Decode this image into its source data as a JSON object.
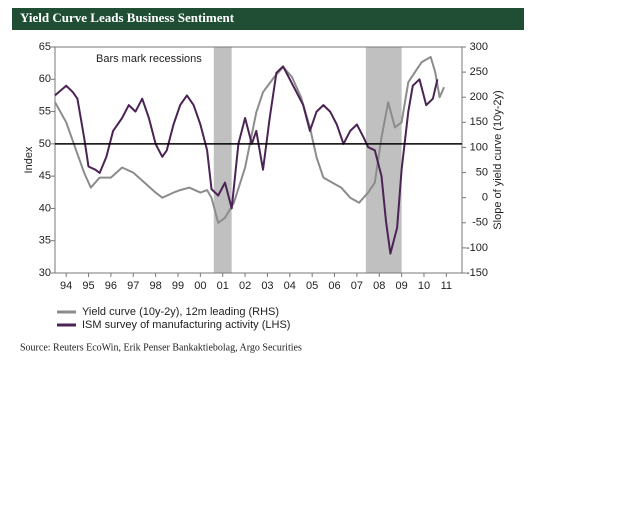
{
  "chart_data": {
    "type": "line",
    "title": "Yield Curve Leads Business Sentiment",
    "annotation": "Bars mark recessions",
    "ylabel": "Index",
    "y2label": "Slope of yield curve (10y-2y)",
    "source": "Source: Reuters EcoWin, Erik Penser Bankaktiebolag, Argo Securities",
    "xlim": [
      1994,
      2012.2
    ],
    "xticks": [
      {
        "value": 1994.5,
        "label": "94"
      },
      {
        "value": 1995.5,
        "label": "95"
      },
      {
        "value": 1996.5,
        "label": "96"
      },
      {
        "value": 1997.5,
        "label": "97"
      },
      {
        "value": 1998.5,
        "label": "98"
      },
      {
        "value": 1999.5,
        "label": "99"
      },
      {
        "value": 2000.5,
        "label": "00"
      },
      {
        "value": 2001.5,
        "label": "01"
      },
      {
        "value": 2002.5,
        "label": "02"
      },
      {
        "value": 2003.5,
        "label": "03"
      },
      {
        "value": 2004.5,
        "label": "04"
      },
      {
        "value": 2005.5,
        "label": "05"
      },
      {
        "value": 2006.5,
        "label": "06"
      },
      {
        "value": 2007.5,
        "label": "07"
      },
      {
        "value": 2008.5,
        "label": "08"
      },
      {
        "value": 2009.5,
        "label": "09"
      },
      {
        "value": 2010.5,
        "label": "10"
      },
      {
        "value": 2011.5,
        "label": "11"
      }
    ],
    "ylim": [
      30,
      65
    ],
    "yticks": [
      30,
      35,
      40,
      45,
      50,
      55,
      60,
      65
    ],
    "y2lim": [
      -150,
      300
    ],
    "y2ticks": [
      -150,
      -100,
      -50,
      0,
      50,
      100,
      150,
      200,
      250,
      300
    ],
    "reference_line": 50,
    "recessions": [
      [
        2001.1,
        2001.9
      ],
      [
        2007.9,
        2009.5
      ]
    ],
    "recession_color": "#c0c0c0",
    "series": [
      {
        "name": "Yield curve (10y-2y), 12m leading (RHS)",
        "color": "#8c8c8c",
        "axis": "y2",
        "x": [
          1994.0,
          1994.5,
          1994.9,
          1995.3,
          1995.6,
          1996.0,
          1996.5,
          1997.0,
          1997.5,
          1998.0,
          1998.5,
          1998.8,
          1999.3,
          1999.6,
          2000.0,
          2000.5,
          2000.8,
          2001.0,
          2001.3,
          2001.6,
          2002.0,
          2002.5,
          2003.0,
          2003.3,
          2003.8,
          2004.2,
          2004.6,
          2005.0,
          2005.4,
          2005.7,
          2006.0,
          2006.4,
          2006.8,
          2007.2,
          2007.6,
          2008.0,
          2008.3,
          2008.6,
          2008.9,
          2009.2,
          2009.5,
          2009.8,
          2010.1,
          2010.4,
          2010.8,
          2011.0,
          2011.2,
          2011.4
        ],
        "values": [
          190,
          150,
          100,
          50,
          20,
          40,
          40,
          60,
          50,
          30,
          10,
          0,
          10,
          15,
          20,
          10,
          15,
          0,
          -50,
          -40,
          -10,
          60,
          170,
          210,
          240,
          260,
          240,
          200,
          140,
          80,
          40,
          30,
          20,
          0,
          -10,
          10,
          30,
          120,
          190,
          140,
          150,
          230,
          250,
          270,
          280,
          250,
          200,
          220
        ]
      },
      {
        "name": "ISM survey of manufacturing activity (LHS)",
        "color": "#4b2354",
        "x": [
          1994.0,
          1994.5,
          1994.8,
          1995.0,
          1995.3,
          1995.5,
          1995.8,
          1996.0,
          1996.3,
          1996.6,
          1997.0,
          1997.3,
          1997.6,
          1997.9,
          1998.2,
          1998.5,
          1998.8,
          1999.0,
          1999.3,
          1999.6,
          1999.9,
          2000.2,
          2000.5,
          2000.8,
          2001.0,
          2001.3,
          2001.6,
          2001.9,
          2002.2,
          2002.5,
          2002.8,
          2003.0,
          2003.3,
          2003.6,
          2003.9,
          2004.2,
          2004.5,
          2004.8,
          2005.1,
          2005.4,
          2005.7,
          2006.0,
          2006.3,
          2006.6,
          2006.9,
          2007.2,
          2007.5,
          2007.8,
          2008.0,
          2008.3,
          2008.6,
          2008.8,
          2009.0,
          2009.3,
          2009.5,
          2009.8,
          2010.0,
          2010.3,
          2010.6,
          2010.9,
          2011.1
        ],
        "values": [
          57.5,
          59,
          58,
          57,
          51,
          46.5,
          46,
          45.5,
          48,
          52,
          54,
          56,
          55,
          57,
          54,
          50,
          48,
          49,
          53,
          56,
          57.5,
          56,
          53,
          49,
          43,
          42,
          44,
          40,
          50,
          54,
          50,
          52,
          46,
          54,
          61,
          62,
          60,
          58,
          56,
          52,
          55,
          56,
          55,
          53,
          50,
          52,
          53,
          51,
          49.5,
          49,
          45,
          38,
          33,
          37,
          46,
          55,
          59,
          60,
          56,
          57,
          60
        ]
      }
    ]
  }
}
